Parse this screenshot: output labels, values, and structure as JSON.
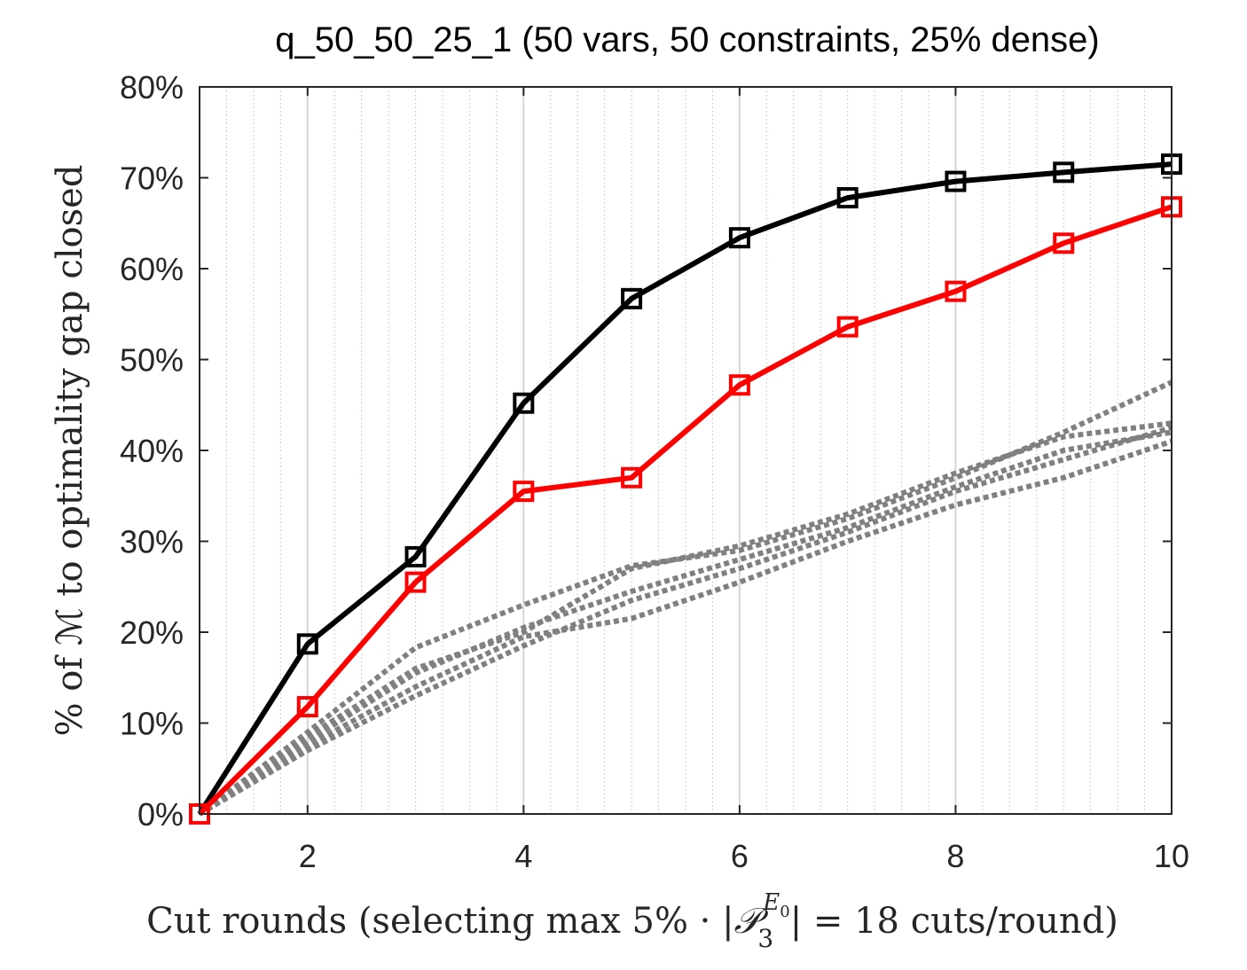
{
  "chart_data": {
    "type": "line",
    "title": "q_50_50_25_1 (50 vars, 50 constraints, 25% dense)",
    "ylabel": "% of ℳ to optimality gap closed",
    "xlabel": {
      "before": "Cut rounds (selecting max 5% · |",
      "symbol": "𝒫",
      "sub": "3",
      "sup": "E",
      "sup_sub": "0",
      "after": "| = 18 cuts/round)"
    },
    "xlim": [
      1,
      10
    ],
    "ylim": [
      0,
      80
    ],
    "x_ticks": [
      2,
      4,
      6,
      8,
      10
    ],
    "y_ticks": [
      0,
      10,
      20,
      30,
      40,
      50,
      60,
      70,
      80
    ],
    "y_tick_suffix": "%",
    "grid": "vertical",
    "x": [
      1,
      2,
      3,
      4,
      5,
      6,
      7,
      8,
      9,
      10
    ],
    "series": [
      {
        "color": "#000000",
        "style": "solid",
        "marker": "square",
        "values": [
          0,
          18.7,
          28.3,
          45.2,
          56.7,
          63.4,
          67.8,
          69.6,
          70.6,
          71.5
        ]
      },
      {
        "color": "#ff0000",
        "style": "solid",
        "marker": "square",
        "values": [
          0,
          11.8,
          25.5,
          35.5,
          37.0,
          47.2,
          53.6,
          57.5,
          62.8,
          66.8
        ]
      },
      {
        "color": "#808080",
        "style": "dotted",
        "marker": "none",
        "values": [
          0,
          9.0,
          18.3,
          23.0,
          27.3,
          29.0,
          32.5,
          37.0,
          42.0,
          47.5
        ]
      },
      {
        "color": "#808080",
        "style": "dotted",
        "marker": "none",
        "values": [
          0,
          8.0,
          15.5,
          20.5,
          24.5,
          28.0,
          31.5,
          36.0,
          40.0,
          42.0
        ]
      },
      {
        "color": "#808080",
        "style": "dotted",
        "marker": "none",
        "values": [
          0,
          7.5,
          14.0,
          19.5,
          21.5,
          25.5,
          30.0,
          34.0,
          37.0,
          41.0
        ]
      },
      {
        "color": "#808080",
        "style": "dotted",
        "marker": "none",
        "values": [
          0,
          8.5,
          16.0,
          20.0,
          27.0,
          29.5,
          33.0,
          37.5,
          41.5,
          43.0
        ]
      },
      {
        "color": "#808080",
        "style": "dotted",
        "marker": "none",
        "values": [
          0,
          7.0,
          13.0,
          18.5,
          23.5,
          27.0,
          31.0,
          35.5,
          39.0,
          42.5
        ]
      }
    ]
  }
}
